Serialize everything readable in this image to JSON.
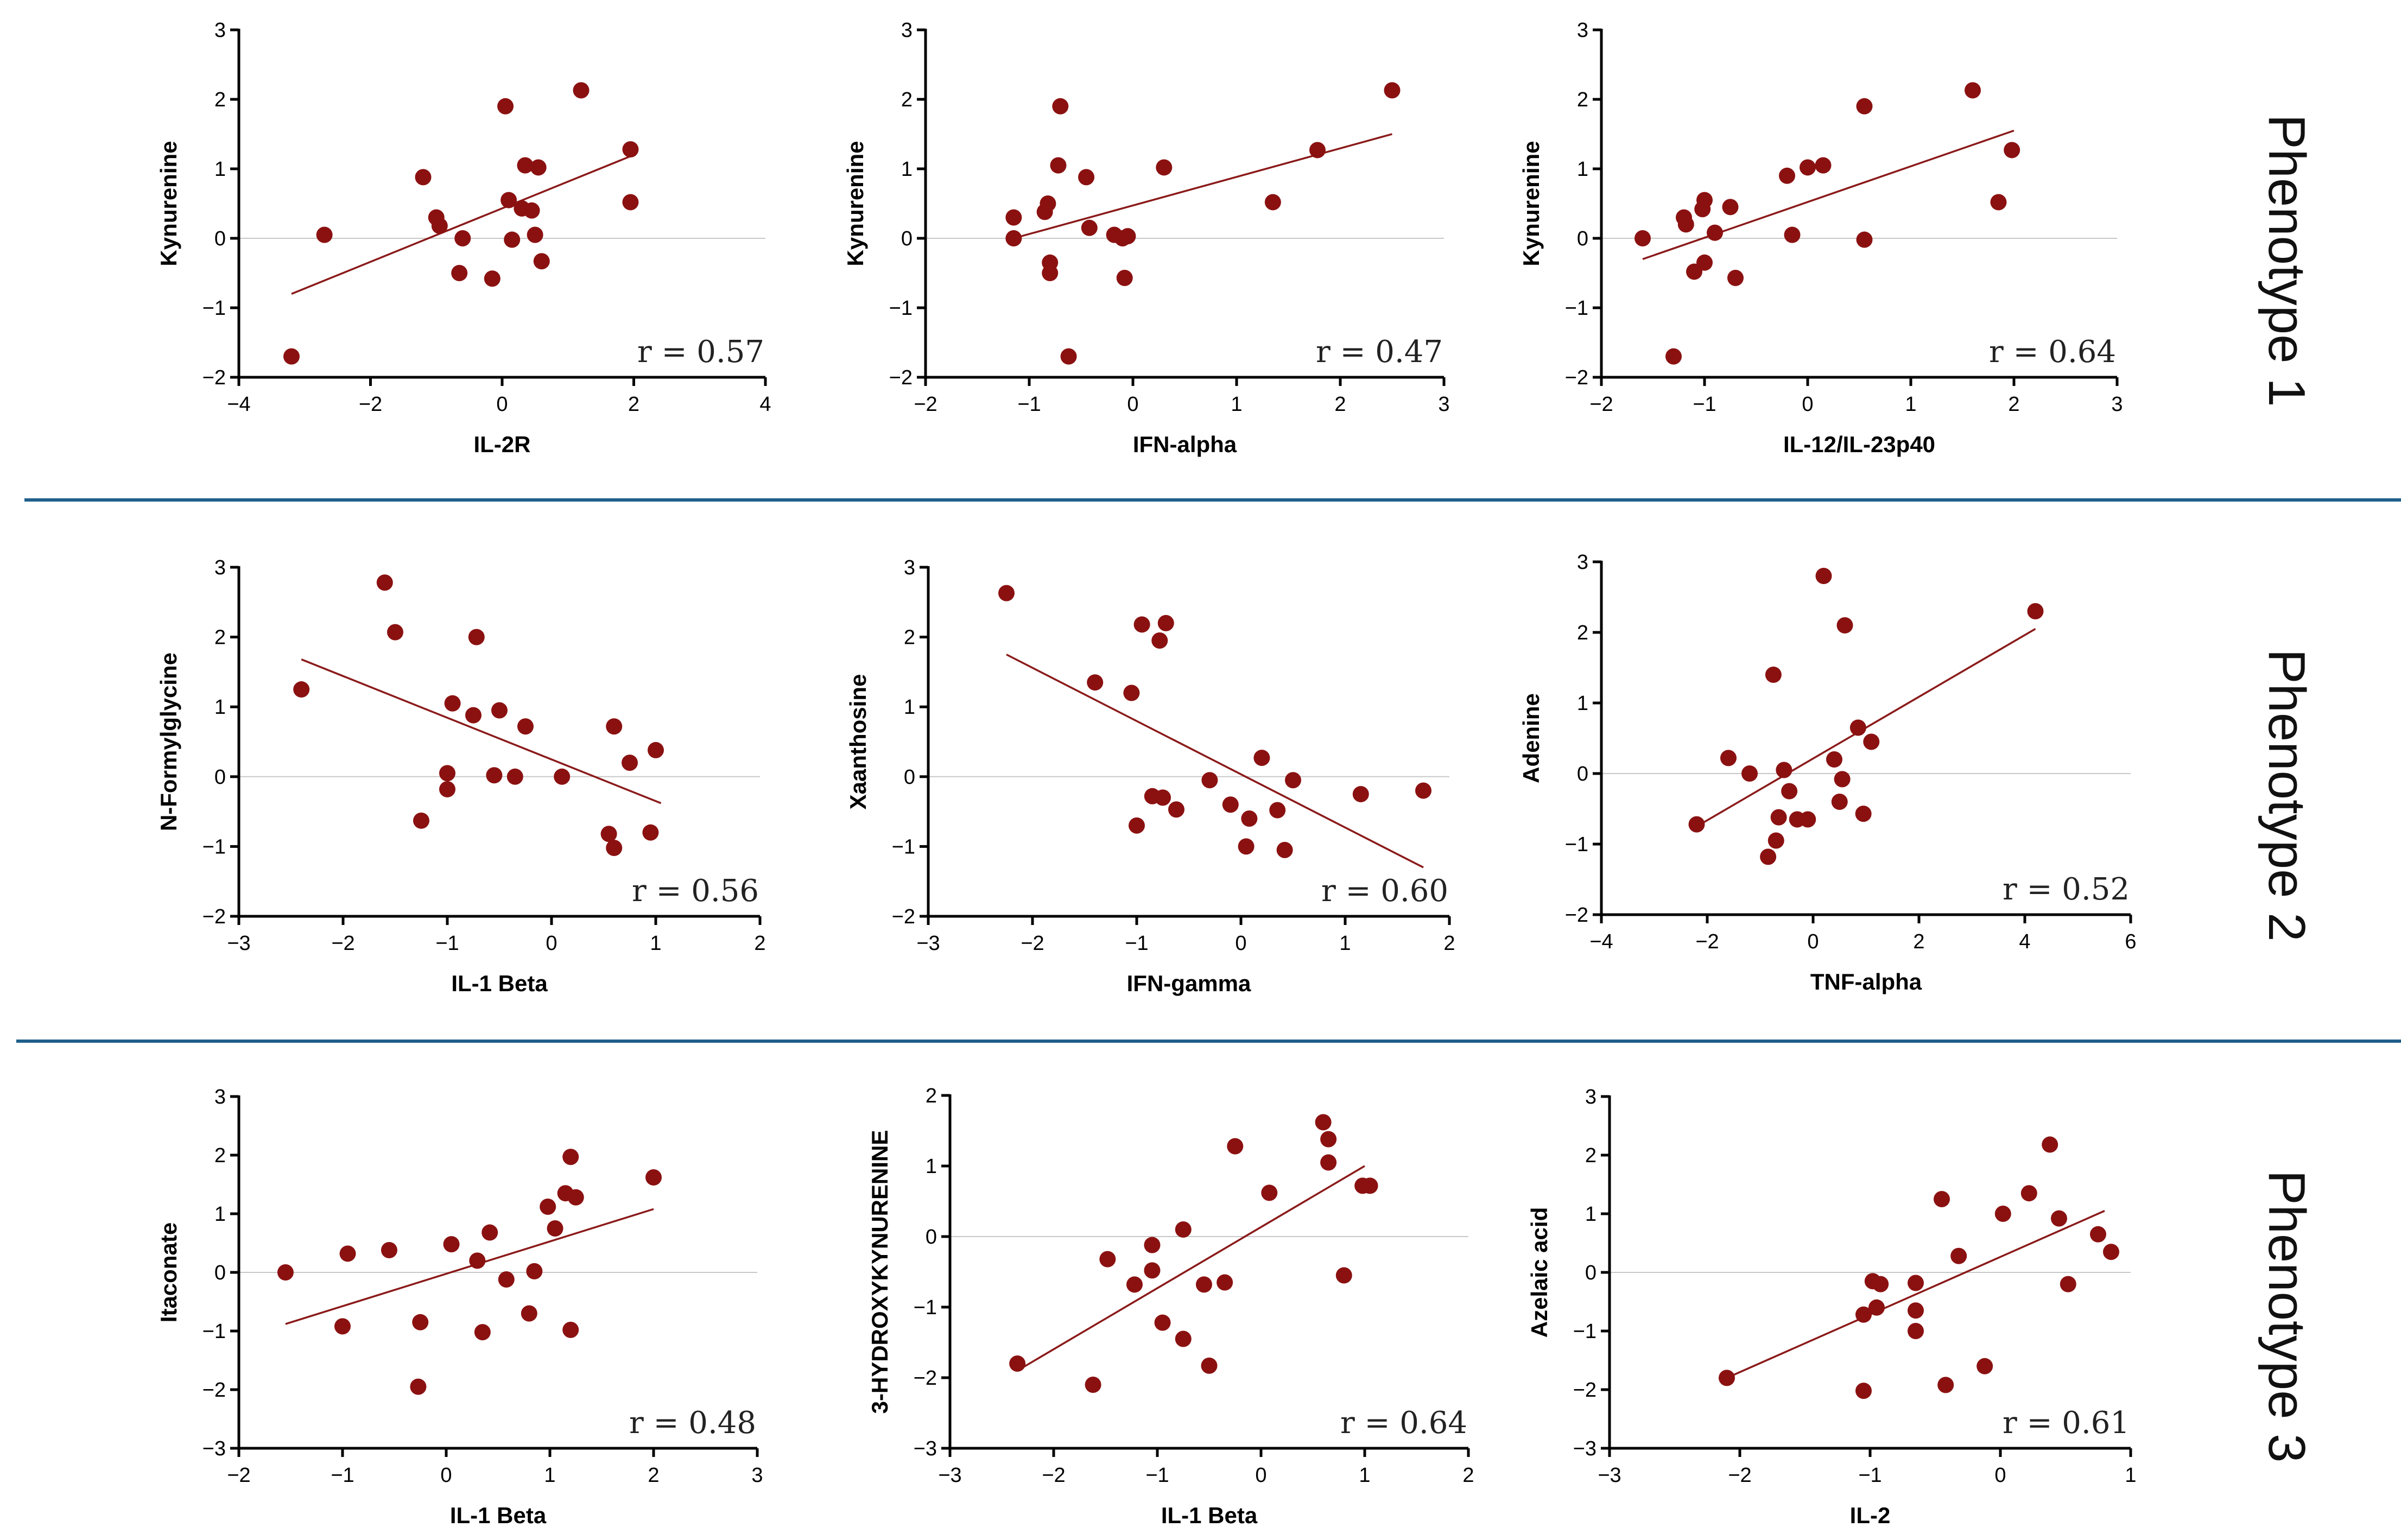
{
  "phenotypes": [
    "Phenotype 1",
    "Phenotype 2",
    "Phenotype 3"
  ],
  "colors": {
    "points": "#8b1111",
    "fit_line": "#8b1a1a",
    "separator": "#1f5f8b",
    "zero_line": "#c8c8c8"
  },
  "chart_data": [
    {
      "type": "scatter",
      "title": "",
      "phenotype": "Phenotype 1",
      "xlabel": "IL-2R",
      "ylabel": "Kynurenine",
      "xlim": [
        -4,
        4
      ],
      "ylim": [
        -2,
        3
      ],
      "xticks": [
        -4,
        -2,
        0,
        2,
        4
      ],
      "yticks": [
        -2,
        -1,
        0,
        1,
        2,
        3
      ],
      "r_label": "r = 0.57",
      "fit": [
        [
          -3.2,
          -0.8
        ],
        [
          2.0,
          1.2
        ]
      ],
      "points": [
        [
          -3.2,
          -1.7
        ],
        [
          -2.7,
          0.05
        ],
        [
          -1.2,
          0.88
        ],
        [
          -1.0,
          0.3
        ],
        [
          -0.95,
          0.18
        ],
        [
          -0.65,
          -0.5
        ],
        [
          -0.6,
          0.0
        ],
        [
          -0.15,
          -0.58
        ],
        [
          0.05,
          1.9
        ],
        [
          0.1,
          0.55
        ],
        [
          0.15,
          -0.02
        ],
        [
          0.3,
          0.43
        ],
        [
          0.35,
          1.05
        ],
        [
          0.45,
          0.4
        ],
        [
          0.5,
          0.05
        ],
        [
          0.55,
          1.02
        ],
        [
          0.6,
          -0.33
        ],
        [
          1.2,
          2.13
        ],
        [
          1.95,
          1.28
        ],
        [
          1.95,
          0.52
        ]
      ]
    },
    {
      "type": "scatter",
      "title": "",
      "phenotype": "Phenotype 1",
      "xlabel": "IFN-alpha",
      "ylabel": "Kynurenine",
      "xlim": [
        -2,
        3
      ],
      "ylim": [
        -2,
        3
      ],
      "xticks": [
        -2,
        -1,
        0,
        1,
        2,
        3
      ],
      "yticks": [
        -2,
        -1,
        0,
        1,
        2,
        3
      ],
      "r_label": "r = 0.47",
      "fit": [
        [
          -1.15,
          0.0
        ],
        [
          2.5,
          1.5
        ]
      ],
      "points": [
        [
          -1.15,
          0.3
        ],
        [
          -1.15,
          0.0
        ],
        [
          -0.85,
          0.38
        ],
        [
          -0.82,
          0.5
        ],
        [
          -0.8,
          -0.35
        ],
        [
          -0.8,
          -0.5
        ],
        [
          -0.72,
          1.05
        ],
        [
          -0.7,
          1.9
        ],
        [
          -0.62,
          -1.7
        ],
        [
          -0.45,
          0.88
        ],
        [
          -0.42,
          0.15
        ],
        [
          -0.18,
          0.05
        ],
        [
          -0.1,
          0.0
        ],
        [
          -0.08,
          -0.57
        ],
        [
          -0.05,
          0.03
        ],
        [
          0.3,
          1.02
        ],
        [
          1.35,
          0.52
        ],
        [
          1.78,
          1.27
        ],
        [
          2.5,
          2.13
        ]
      ]
    },
    {
      "type": "scatter",
      "title": "",
      "phenotype": "Phenotype 1",
      "xlabel": "IL-12/IL-23p40",
      "ylabel": "Kynurenine",
      "xlim": [
        -2,
        3
      ],
      "ylim": [
        -2,
        3
      ],
      "xticks": [
        -2,
        -1,
        0,
        1,
        2,
        3
      ],
      "yticks": [
        -2,
        -1,
        0,
        1,
        2,
        3
      ],
      "r_label": "r = 0.64",
      "fit": [
        [
          -1.6,
          -0.3
        ],
        [
          2.0,
          1.55
        ]
      ],
      "points": [
        [
          -1.6,
          0.0
        ],
        [
          -1.3,
          -1.7
        ],
        [
          -1.2,
          0.3
        ],
        [
          -1.18,
          0.2
        ],
        [
          -1.1,
          -0.48
        ],
        [
          -1.02,
          0.42
        ],
        [
          -1.0,
          0.55
        ],
        [
          -1.0,
          -0.35
        ],
        [
          -0.9,
          0.08
        ],
        [
          -0.75,
          0.45
        ],
        [
          -0.7,
          -0.57
        ],
        [
          -0.2,
          0.9
        ],
        [
          -0.15,
          0.05
        ],
        [
          0.0,
          1.02
        ],
        [
          0.15,
          1.05
        ],
        [
          0.55,
          1.9
        ],
        [
          0.55,
          -0.02
        ],
        [
          1.6,
          2.13
        ],
        [
          1.85,
          0.52
        ],
        [
          1.98,
          1.27
        ]
      ]
    },
    {
      "type": "scatter",
      "title": "",
      "phenotype": "Phenotype 2",
      "xlabel": "IL-1 Beta",
      "ylabel": "N-Formylglycine",
      "xlim": [
        -3,
        2
      ],
      "ylim": [
        -2,
        3
      ],
      "xticks": [
        -3,
        -2,
        -1,
        0,
        1,
        2
      ],
      "yticks": [
        -2,
        -1,
        0,
        1,
        2,
        3
      ],
      "r_label": "r = 0.56",
      "fit": [
        [
          -2.4,
          1.68
        ],
        [
          1.05,
          -0.38
        ]
      ],
      "points": [
        [
          -2.4,
          1.25
        ],
        [
          -1.6,
          2.78
        ],
        [
          -1.5,
          2.07
        ],
        [
          -1.25,
          -0.63
        ],
        [
          -1.0,
          0.05
        ],
        [
          -1.0,
          -0.18
        ],
        [
          -0.95,
          1.05
        ],
        [
          -0.75,
          0.88
        ],
        [
          -0.72,
          2.0
        ],
        [
          -0.55,
          0.02
        ],
        [
          -0.5,
          0.95
        ],
        [
          -0.35,
          0.0
        ],
        [
          -0.25,
          0.72
        ],
        [
          0.1,
          0.0
        ],
        [
          0.55,
          -0.82
        ],
        [
          0.6,
          0.72
        ],
        [
          0.6,
          -1.02
        ],
        [
          0.75,
          0.2
        ],
        [
          0.95,
          -0.8
        ],
        [
          1.0,
          0.38
        ]
      ]
    },
    {
      "type": "scatter",
      "title": "",
      "phenotype": "Phenotype 2",
      "xlabel": "IFN-gamma",
      "ylabel": "Xaanthosine",
      "xlim": [
        -3,
        2
      ],
      "ylim": [
        -2,
        3
      ],
      "xticks": [
        -3,
        -2,
        -1,
        0,
        1,
        2
      ],
      "yticks": [
        -2,
        -1,
        0,
        1,
        2,
        3
      ],
      "r_label": "r = 0.60",
      "fit": [
        [
          -2.25,
          1.75
        ],
        [
          1.75,
          -1.3
        ]
      ],
      "points": [
        [
          -2.25,
          2.63
        ],
        [
          -1.4,
          1.35
        ],
        [
          -1.05,
          1.2
        ],
        [
          -1.0,
          -0.7
        ],
        [
          -0.95,
          2.18
        ],
        [
          -0.85,
          -0.28
        ],
        [
          -0.78,
          1.95
        ],
        [
          -0.75,
          -0.3
        ],
        [
          -0.72,
          2.2
        ],
        [
          -0.62,
          -0.47
        ],
        [
          -0.3,
          -0.05
        ],
        [
          -0.1,
          -0.4
        ],
        [
          0.05,
          -1.0
        ],
        [
          0.08,
          -0.6
        ],
        [
          0.2,
          0.27
        ],
        [
          0.35,
          -0.48
        ],
        [
          0.42,
          -1.05
        ],
        [
          0.5,
          -0.05
        ],
        [
          1.15,
          -0.25
        ],
        [
          1.75,
          -0.2
        ]
      ]
    },
    {
      "type": "scatter",
      "title": "",
      "phenotype": "Phenotype 2",
      "xlabel": "TNF-alpha",
      "ylabel": "Adenine",
      "xlim": [
        -4,
        6
      ],
      "ylim": [
        -2,
        3
      ],
      "xticks": [
        -4,
        -2,
        0,
        2,
        4,
        6
      ],
      "yticks": [
        -2,
        -1,
        0,
        1,
        2,
        3
      ],
      "r_label": "r = 0.52",
      "fit": [
        [
          -2.2,
          -0.75
        ],
        [
          4.2,
          2.05
        ]
      ],
      "points": [
        [
          -2.2,
          -0.72
        ],
        [
          -1.6,
          0.22
        ],
        [
          -1.2,
          0.0
        ],
        [
          -0.85,
          -1.18
        ],
        [
          -0.75,
          1.4
        ],
        [
          -0.7,
          -0.95
        ],
        [
          -0.65,
          -0.62
        ],
        [
          -0.55,
          0.05
        ],
        [
          -0.45,
          -0.25
        ],
        [
          -0.3,
          -0.65
        ],
        [
          -0.1,
          -0.65
        ],
        [
          0.2,
          2.8
        ],
        [
          0.4,
          0.2
        ],
        [
          0.5,
          -0.4
        ],
        [
          0.55,
          -0.08
        ],
        [
          0.6,
          2.1
        ],
        [
          0.85,
          0.65
        ],
        [
          0.95,
          -0.57
        ],
        [
          1.1,
          0.45
        ],
        [
          4.2,
          2.3
        ]
      ]
    },
    {
      "type": "scatter",
      "title": "",
      "phenotype": "Phenotype 3",
      "xlabel": "IL-1 Beta",
      "ylabel": "Itaconate",
      "xlim": [
        -2,
        3
      ],
      "ylim": [
        -3,
        3
      ],
      "xticks": [
        -2,
        -1,
        0,
        1,
        2,
        3
      ],
      "yticks": [
        -3,
        -2,
        -1,
        0,
        1,
        2,
        3
      ],
      "r_label": "r = 0.48",
      "fit": [
        [
          -1.55,
          -0.88
        ],
        [
          2.0,
          1.08
        ]
      ],
      "points": [
        [
          -1.55,
          0.0
        ],
        [
          -1.0,
          -0.92
        ],
        [
          -0.95,
          0.32
        ],
        [
          -0.55,
          0.38
        ],
        [
          -0.27,
          -1.95
        ],
        [
          -0.25,
          -0.85
        ],
        [
          0.05,
          0.48
        ],
        [
          0.3,
          0.2
        ],
        [
          0.35,
          -1.02
        ],
        [
          0.42,
          0.68
        ],
        [
          0.58,
          -0.12
        ],
        [
          0.8,
          -0.7
        ],
        [
          0.85,
          0.02
        ],
        [
          0.98,
          1.12
        ],
        [
          1.05,
          0.75
        ],
        [
          1.15,
          1.35
        ],
        [
          1.2,
          1.97
        ],
        [
          1.2,
          -0.98
        ],
        [
          1.25,
          1.28
        ],
        [
          2.0,
          1.62
        ]
      ]
    },
    {
      "type": "scatter",
      "title": "",
      "phenotype": "Phenotype 3",
      "xlabel": "IL-1 Beta",
      "ylabel": "3-HYDROXYKYNURENINE",
      "xlim": [
        -3,
        2
      ],
      "ylim": [
        -3,
        2
      ],
      "xticks": [
        -3,
        -2,
        -1,
        0,
        1,
        2
      ],
      "yticks": [
        -3,
        -2,
        -1,
        0,
        1,
        2
      ],
      "r_label": "r = 0.64",
      "fit": [
        [
          -2.35,
          -1.9
        ],
        [
          1.0,
          1.0
        ]
      ],
      "points": [
        [
          -2.35,
          -1.8
        ],
        [
          -1.62,
          -2.1
        ],
        [
          -1.48,
          -0.32
        ],
        [
          -1.22,
          -0.68
        ],
        [
          -1.05,
          -0.12
        ],
        [
          -1.05,
          -0.48
        ],
        [
          -0.95,
          -1.22
        ],
        [
          -0.75,
          0.1
        ],
        [
          -0.75,
          -1.45
        ],
        [
          -0.55,
          -0.68
        ],
        [
          -0.5,
          -1.83
        ],
        [
          -0.35,
          -0.65
        ],
        [
          -0.25,
          1.28
        ],
        [
          0.08,
          0.62
        ],
        [
          0.6,
          1.62
        ],
        [
          0.65,
          1.38
        ],
        [
          0.65,
          1.05
        ],
        [
          0.8,
          -0.55
        ],
        [
          0.98,
          0.72
        ],
        [
          1.05,
          0.72
        ]
      ]
    },
    {
      "type": "scatter",
      "title": "",
      "phenotype": "Phenotype 3",
      "xlabel": "IL-2",
      "ylabel": "Azelaic acid",
      "xlim": [
        -3,
        1
      ],
      "ylim": [
        -3,
        3
      ],
      "xticks": [
        -3,
        -2,
        -1,
        0,
        1
      ],
      "yticks": [
        -3,
        -2,
        -1,
        0,
        1,
        2,
        3
      ],
      "r_label": "r = 0.61",
      "fit": [
        [
          -2.1,
          -1.8
        ],
        [
          0.8,
          1.05
        ]
      ],
      "points": [
        [
          -2.1,
          -1.8
        ],
        [
          -1.05,
          -0.72
        ],
        [
          -1.05,
          -2.02
        ],
        [
          -0.98,
          -0.15
        ],
        [
          -0.95,
          -0.6
        ],
        [
          -0.92,
          -0.2
        ],
        [
          -0.65,
          -0.18
        ],
        [
          -0.65,
          -0.65
        ],
        [
          -0.65,
          -1.0
        ],
        [
          -0.45,
          1.25
        ],
        [
          -0.42,
          -1.92
        ],
        [
          -0.32,
          0.28
        ],
        [
          -0.12,
          -1.6
        ],
        [
          0.02,
          1.0
        ],
        [
          0.22,
          1.35
        ],
        [
          0.38,
          2.18
        ],
        [
          0.45,
          0.92
        ],
        [
          0.52,
          -0.2
        ],
        [
          0.75,
          0.65
        ],
        [
          0.85,
          0.35
        ]
      ]
    }
  ]
}
